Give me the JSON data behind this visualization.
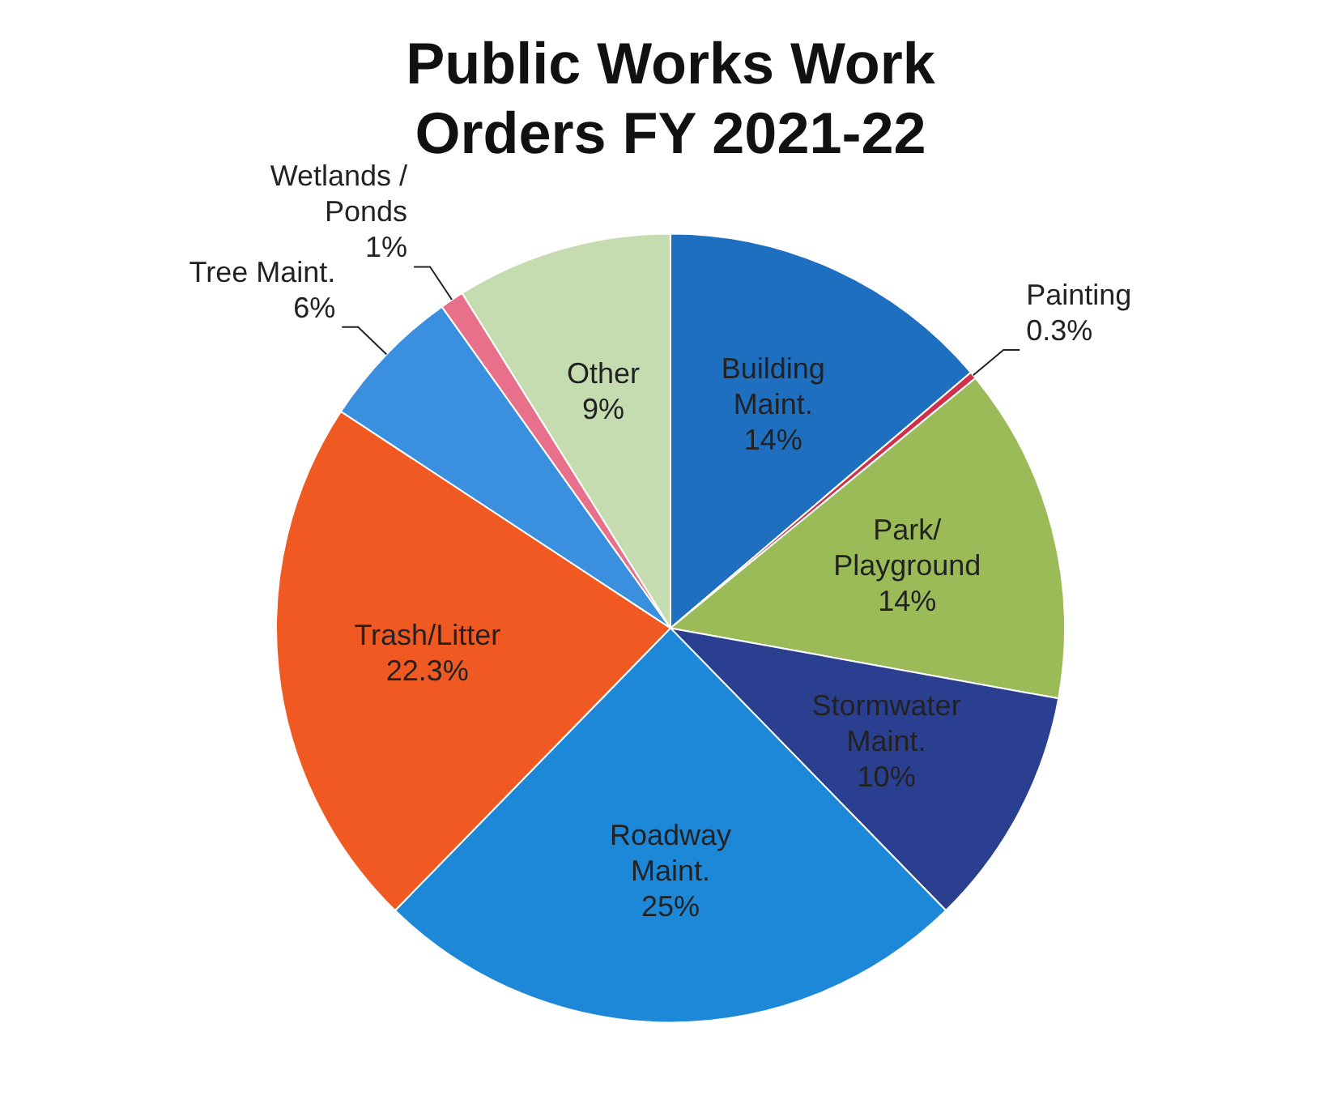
{
  "chart_data": {
    "type": "pie",
    "title": "Public Works Work Orders FY 2021-22",
    "categories": [
      "Building Maint.",
      "Painting",
      "Park/Playground",
      "Stormwater Maint.",
      "Roadway Maint.",
      "Trash/Litter",
      "Tree Maint.",
      "Wetlands / Ponds",
      "Other"
    ],
    "values": [
      14,
      0.3,
      14,
      10,
      25,
      22.3,
      6,
      1,
      9
    ],
    "value_labels": [
      "14%",
      "0.3%",
      "14%",
      "10%",
      "25%",
      "22.3%",
      "6%",
      "1%",
      "9%"
    ],
    "colors": [
      "#1f6fc0",
      "#d0304a",
      "#9bbb59",
      "#2a3f8f",
      "#1e88d8",
      "#f05a22",
      "#3a8fde",
      "#e8708a",
      "#c5dcb0"
    ],
    "legend": false
  }
}
